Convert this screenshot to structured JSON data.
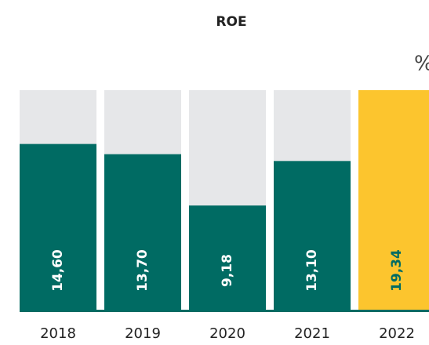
{
  "chart_data": {
    "type": "bar",
    "title": "ROE",
    "unit": "%",
    "categories": [
      "2018",
      "2019",
      "2020",
      "2021",
      "2022"
    ],
    "values": [
      14.6,
      13.7,
      9.18,
      13.1,
      19.34
    ],
    "value_labels": [
      "14,60",
      "13,70",
      "9,18",
      "13,10",
      "19,34"
    ],
    "colors": [
      "#006b63",
      "#006b63",
      "#006b63",
      "#006b63",
      "#fcc52e"
    ],
    "label_colors": [
      "#ffffff",
      "#ffffff",
      "#ffffff",
      "#ffffff",
      "#006b63"
    ],
    "background_color": "#e6e7e9",
    "ylim": [
      0,
      19.34
    ]
  }
}
